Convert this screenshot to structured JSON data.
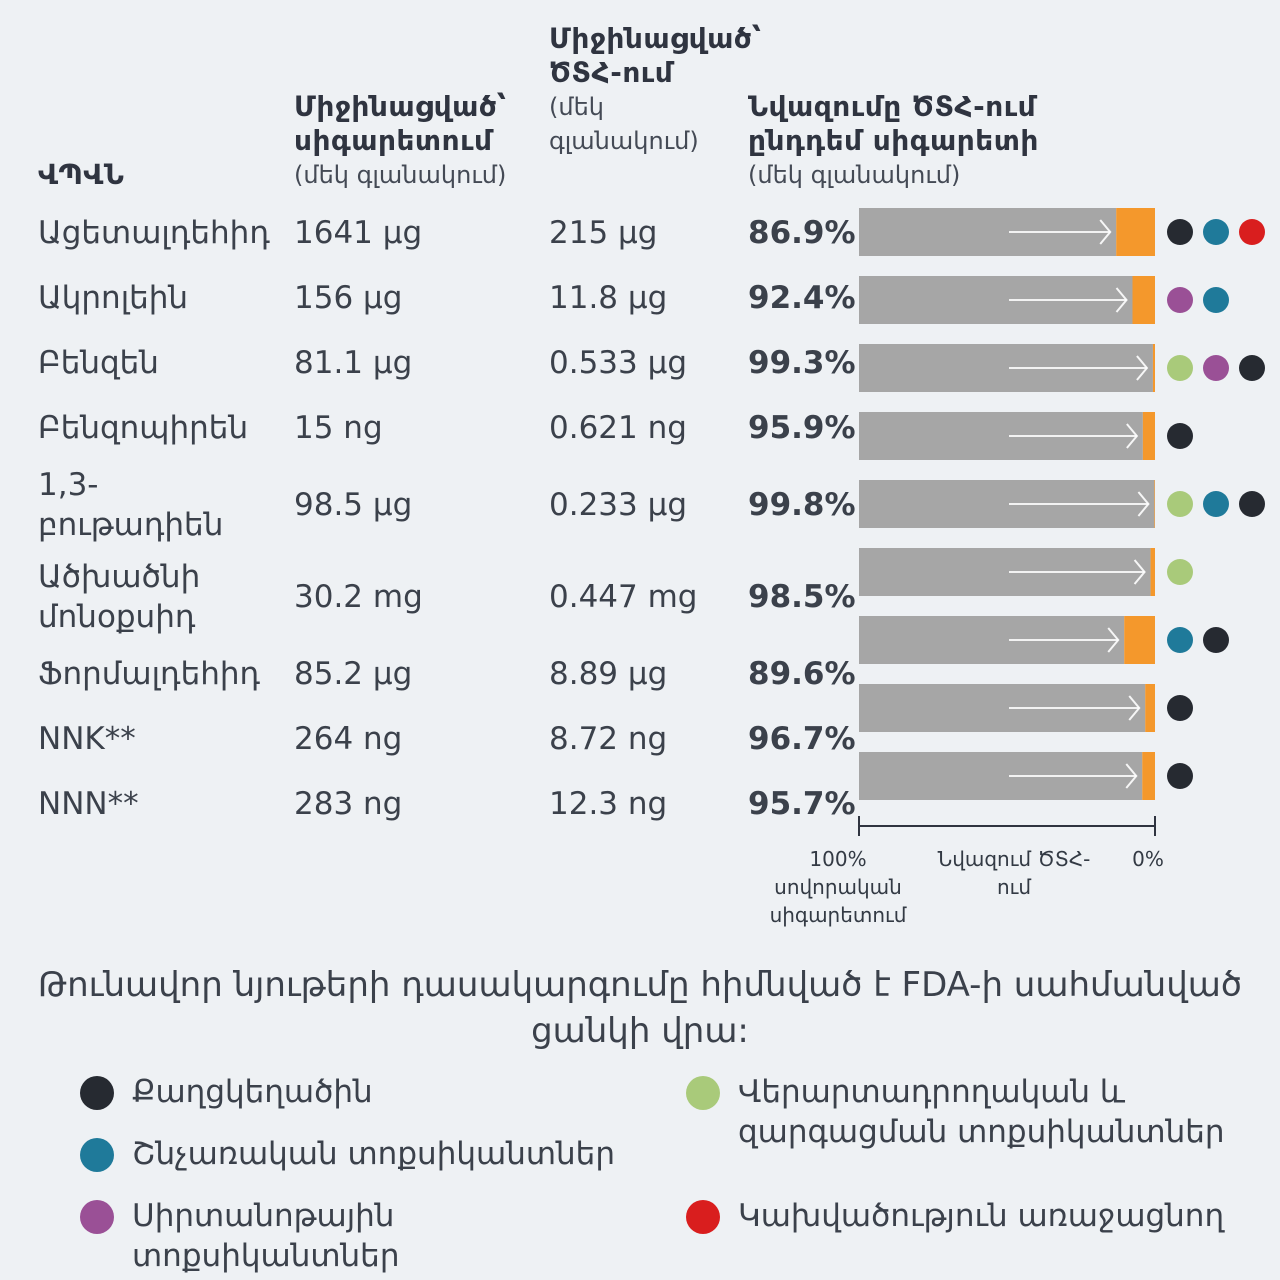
{
  "headers": {
    "col1": "ՎՊՎՆ",
    "col2_title": "Միջինացված՝ սիգարետում",
    "col2_sub": "(մեկ գլանակում)",
    "col3_title": "Միջինացված՝ ԾՏՀ-ում",
    "col3_sub": "(մեկ գլանակում)",
    "col4_title": "Նվազումը ԾՏՀ-ում ընդդեմ սիգարետի",
    "col4_sub": "(մեկ գլանակում)"
  },
  "colors": {
    "carcinogen": "#262a31",
    "respiratory": "#1f7a9a",
    "cardiovascular": "#9a5096",
    "reproductive": "#a9ca7a",
    "addictive": "#d91e1e",
    "bar_gray": "#a6a6a6",
    "bar_orange": "#f4982c"
  },
  "rows": [
    {
      "name": "Ացետալդեհիդ",
      "cig": "1641 µg",
      "htp": "215 µg",
      "pct": "86.9%",
      "tags": [
        "carcinogen",
        "respiratory",
        "addictive"
      ]
    },
    {
      "name": "Ակրոլեին",
      "cig": "156 µg",
      "htp": "11.8 µg",
      "pct": "92.4%",
      "tags": [
        "cardiovascular",
        "respiratory"
      ]
    },
    {
      "name": "Բենզեն",
      "cig": "81.1 µg",
      "htp": "0.533 µg",
      "pct": "99.3%",
      "tags": [
        "reproductive",
        "cardiovascular",
        "carcinogen"
      ]
    },
    {
      "name": "Բենզոպիրեն",
      "cig": "15 ng",
      "htp": "0.621 ng",
      "pct": "95.9%",
      "tags": [
        "carcinogen"
      ]
    },
    {
      "name": "1,3-բութադիեն",
      "cig": "98.5 µg",
      "htp": "0.233 µg",
      "pct": "99.8%",
      "tags": [
        "reproductive",
        "respiratory",
        "carcinogen"
      ]
    },
    {
      "name": "Ածխածնի մոնօքսիդ",
      "cig": "30.2 mg",
      "htp": "0.447 mg",
      "pct": "98.5%",
      "tags": [
        "reproductive"
      ]
    },
    {
      "name": "Ֆորմալդեհիդ",
      "cig": "85.2 µg",
      "htp": "8.89 µg",
      "pct": "89.6%",
      "tags": [
        "respiratory",
        "carcinogen"
      ]
    },
    {
      "name": "NNK**",
      "cig": "264 ng",
      "htp": "8.72 ng",
      "pct": "96.7%",
      "tags": [
        "carcinogen"
      ]
    },
    {
      "name": "NNN**",
      "cig": "283 ng",
      "htp": "12.3 ng",
      "pct": "95.7%",
      "tags": [
        "carcinogen"
      ]
    }
  ],
  "axis": {
    "left_pct": "100%",
    "left_text": "սովորական սիգարետում",
    "mid_text": "Նվազում ԾՏՀ-ում",
    "right_pct": "0%"
  },
  "chart_data": {
    "type": "bar",
    "categories": [
      "Ացետալդեհիդ",
      "Ակրոլեին",
      "Բենզեն",
      "Բենզոպիրեն",
      "1,3-բութադիեն",
      "Ածխածնի մոնօքսիդ",
      "Ֆորմալդեհիդ",
      "NNK**",
      "NNN**"
    ],
    "series": [
      {
        "values": [
          86.9,
          92.4,
          99.3,
          95.9,
          99.8,
          98.5,
          89.6,
          96.7,
          95.7
        ]
      }
    ],
    "xlim": [
      100,
      0
    ]
  },
  "legend": {
    "title": "Թունավոր նյութերի դասակարգումը հիմնված է FDA-ի սահմանված ցանկի վրա:",
    "items": [
      {
        "key": "carcinogen",
        "label": "Քաղցկեղածին"
      },
      {
        "key": "respiratory",
        "label": "Շնչառական տոքսիկանտներ"
      },
      {
        "key": "cardiovascular",
        "label": "Սիրտանոթային տոքսիկանտներ"
      },
      {
        "key": "reproductive",
        "label": "Վերարտադրողական և զարգացման տոքսիկանտներ"
      },
      {
        "key": "addictive",
        "label": "Կախվածություն առաջացնող"
      }
    ]
  }
}
